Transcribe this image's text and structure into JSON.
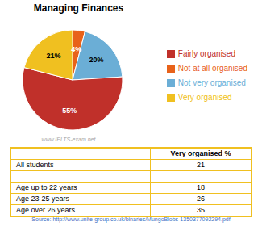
{
  "chart_data": {
    "type": "pie",
    "title": "Managing Finances",
    "categories": [
      "Not at all organised",
      "Not very organised",
      "Fairly organised",
      "Very organised"
    ],
    "values": [
      4,
      20,
      55,
      21
    ],
    "value_labels": [
      "4%",
      "20%",
      "55%",
      "21%"
    ],
    "colors": [
      "#E8621A",
      "#6BAED6",
      "#C0302A",
      "#F0C020"
    ],
    "data_labels": true,
    "legend": "right",
    "annotations": [
      "www.IELTS-exam.net",
      "Source: http://www.unite-group.co.uk/binaries/MungoBlobs-1350377092294.pdf"
    ],
    "table": {
      "header": "Very organised %",
      "color": "#F0C020",
      "rows": [
        {
          "label": "All students",
          "value": 21
        },
        null,
        {
          "label": "Age up to 22 years",
          "value": 18
        },
        {
          "label": "Age 23-25 years",
          "value": 26
        },
        {
          "label": "Age over 26 years",
          "value": 35
        }
      ]
    }
  }
}
